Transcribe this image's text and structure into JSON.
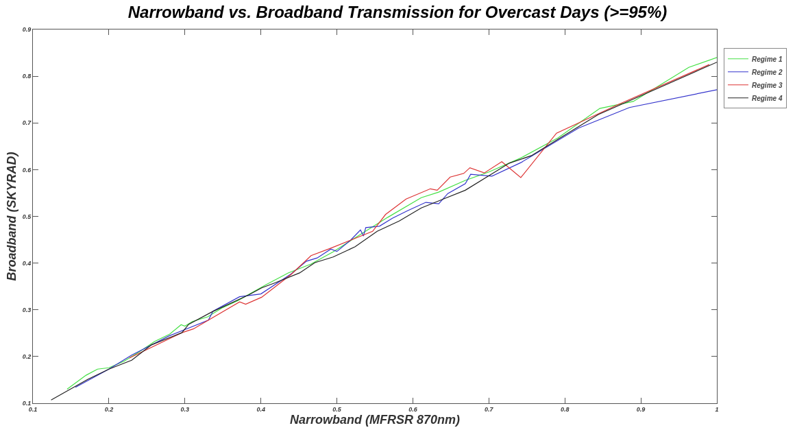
{
  "chart_data": {
    "type": "line",
    "title": "Narrowband vs. Broadband Transmission for Overcast Days (>=95%)",
    "xlabel": "Narrowband (MFRSR 870nm)",
    "ylabel": "Broadband (SKYRAD)",
    "xlim": [
      0.1,
      1
    ],
    "xticks": [
      0.1,
      0.2,
      0.3,
      0.4,
      0.5,
      0.6,
      0.7,
      0.8,
      0.9,
      1
    ],
    "ylim": [
      0.1,
      0.9
    ],
    "yticks": [
      0.1,
      0.2,
      0.3,
      0.4,
      0.5,
      0.6,
      0.7,
      0.8,
      0.9
    ],
    "grid": false,
    "legend": "top right",
    "marker": "none",
    "line_style": "solid",
    "series": [
      {
        "name": "Regime 1",
        "color": "#44e044",
        "x": [
          0.145,
          0.17,
          0.185,
          0.2,
          0.22,
          0.24,
          0.26,
          0.28,
          0.295,
          0.3,
          0.31,
          0.33,
          0.35,
          0.37,
          0.407,
          0.436,
          0.466,
          0.495,
          0.524,
          0.567,
          0.611,
          0.634,
          0.669,
          0.7,
          0.742,
          0.791,
          0.846,
          0.89,
          0.963,
          1.0
        ],
        "values": [
          0.13,
          0.16,
          0.173,
          0.176,
          0.19,
          0.21,
          0.232,
          0.248,
          0.268,
          0.265,
          0.275,
          0.285,
          0.305,
          0.32,
          0.354,
          0.379,
          0.398,
          0.424,
          0.454,
          0.498,
          0.54,
          0.552,
          0.577,
          0.595,
          0.625,
          0.668,
          0.731,
          0.746,
          0.819,
          0.84
        ]
      },
      {
        "name": "Regime 2",
        "color": "#3333cc",
        "x": [
          0.156,
          0.2,
          0.23,
          0.279,
          0.331,
          0.337,
          0.372,
          0.4,
          0.44,
          0.46,
          0.474,
          0.492,
          0.5,
          0.518,
          0.531,
          0.535,
          0.538,
          0.556,
          0.573,
          0.593,
          0.617,
          0.634,
          0.646,
          0.669,
          0.676,
          0.704,
          0.742,
          0.818,
          0.885,
          1.0
        ],
        "values": [
          0.134,
          0.173,
          0.203,
          0.244,
          0.278,
          0.297,
          0.328,
          0.334,
          0.377,
          0.404,
          0.411,
          0.43,
          0.425,
          0.449,
          0.471,
          0.458,
          0.476,
          0.479,
          0.496,
          0.512,
          0.53,
          0.527,
          0.549,
          0.57,
          0.59,
          0.586,
          0.615,
          0.689,
          0.733,
          0.771
        ]
      },
      {
        "name": "Regime 3",
        "color": "#dd3333",
        "x": [
          0.227,
          0.296,
          0.311,
          0.372,
          0.38,
          0.401,
          0.44,
          0.466,
          0.492,
          0.518,
          0.547,
          0.564,
          0.591,
          0.623,
          0.632,
          0.649,
          0.667,
          0.675,
          0.694,
          0.717,
          0.742,
          0.789,
          0.871,
          0.99
        ],
        "values": [
          0.197,
          0.251,
          0.259,
          0.317,
          0.312,
          0.327,
          0.376,
          0.416,
          0.432,
          0.449,
          0.468,
          0.504,
          0.537,
          0.559,
          0.556,
          0.584,
          0.592,
          0.604,
          0.593,
          0.617,
          0.583,
          0.678,
          0.74,
          0.825
        ]
      },
      {
        "name": "Regime 4",
        "color": "#222222",
        "x": [
          0.124,
          0.172,
          0.2,
          0.23,
          0.256,
          0.296,
          0.305,
          0.335,
          0.384,
          0.401,
          0.419,
          0.451,
          0.471,
          0.495,
          0.524,
          0.553,
          0.582,
          0.611,
          0.64,
          0.669,
          0.727,
          0.756,
          0.791,
          0.844,
          1.0
        ],
        "values": [
          0.107,
          0.151,
          0.173,
          0.192,
          0.225,
          0.251,
          0.269,
          0.295,
          0.332,
          0.347,
          0.358,
          0.379,
          0.401,
          0.413,
          0.435,
          0.468,
          0.49,
          0.518,
          0.537,
          0.556,
          0.614,
          0.63,
          0.665,
          0.718,
          0.83
        ]
      }
    ]
  }
}
